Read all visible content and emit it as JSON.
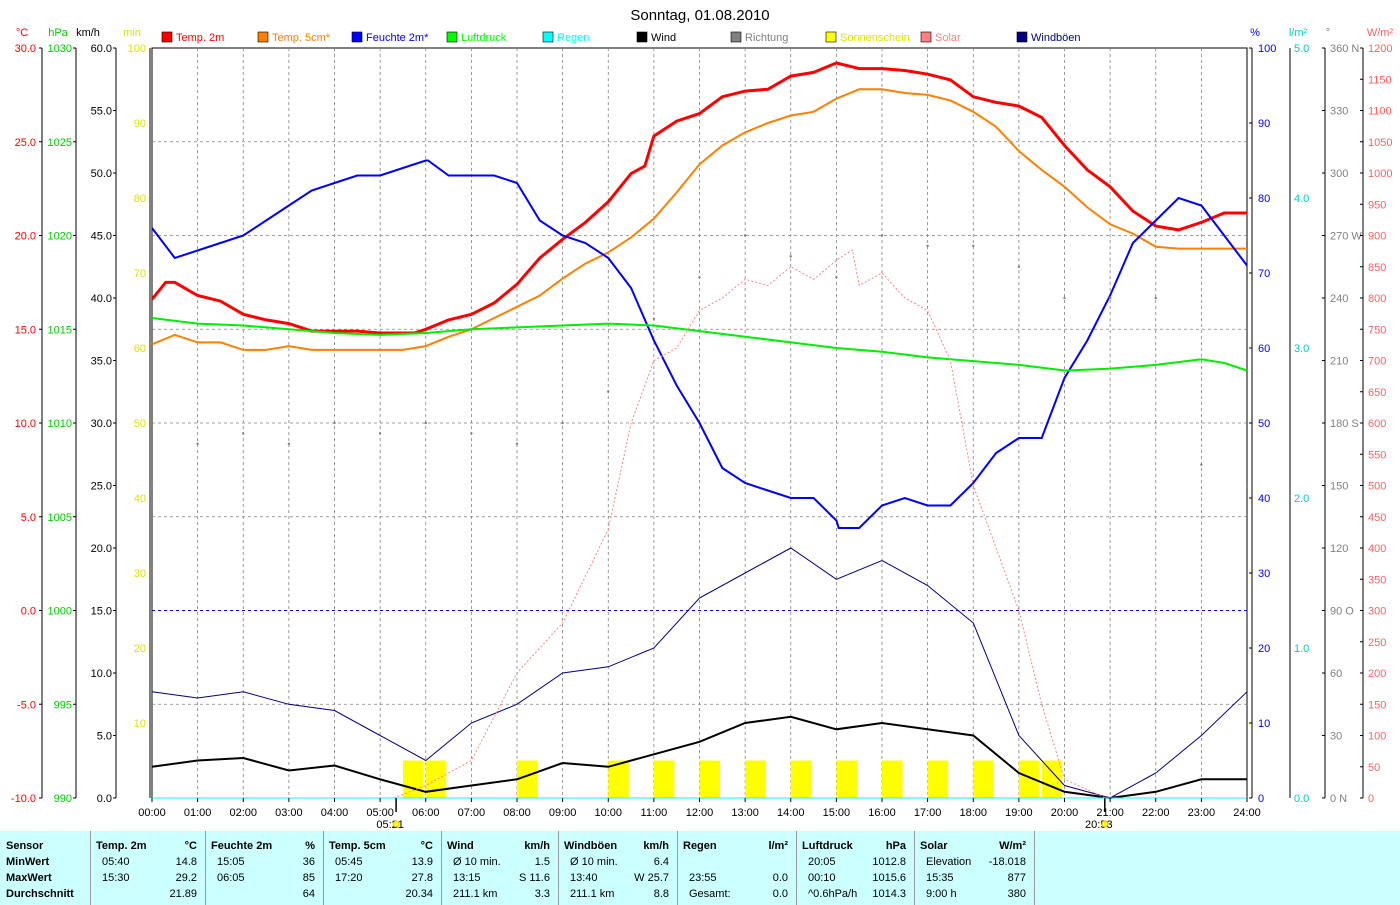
{
  "title": "Sonntag, 01.08.2010",
  "legend": [
    {
      "label": "Temp. 2m",
      "color": "#ff0000"
    },
    {
      "label": "Temp. 5cm*",
      "color": "#ff8000"
    },
    {
      "label": "Feuchte 2m*",
      "color": "#0000ff"
    },
    {
      "label": "Luftdruck",
      "color": "#00ff00"
    },
    {
      "label": "Regen",
      "color": "#00ffff"
    },
    {
      "label": "Wind",
      "color": "#000000"
    },
    {
      "label": "Richtung",
      "color": "#808080"
    },
    {
      "label": "Sonnenschein",
      "color": "#ffff00"
    },
    {
      "label": "Solar",
      "color": "#ff8080"
    },
    {
      "label": "Windböen",
      "color": "#000080"
    }
  ],
  "axis_units": {
    "temp": "°C",
    "pressure": "hPa",
    "wind": "km/h",
    "sun": "min",
    "humidity": "%",
    "rain": "l/m²",
    "direction": "°",
    "solar": "W/m²"
  },
  "axes": {
    "temp": {
      "ticks": [
        "30.0",
        "25.0",
        "20.0",
        "15.0",
        "10.0",
        "5.0",
        "0.0",
        "-5.0",
        "-10.0"
      ],
      "color": "#ff0000"
    },
    "pressure": {
      "ticks": [
        "1030",
        "1025",
        "1020",
        "1015",
        "1010",
        "1005",
        "1000",
        "995",
        "990"
      ],
      "color": "#00cc00"
    },
    "wind": {
      "ticks": [
        "60.0",
        "55.0",
        "50.0",
        "45.0",
        "40.0",
        "35.0",
        "30.0",
        "25.0",
        "20.0",
        "15.0",
        "10.0",
        "5.0",
        "0.0"
      ],
      "color": "#000000"
    },
    "sun": {
      "ticks": [
        "100",
        "90",
        "80",
        "70",
        "60",
        "50",
        "40",
        "30",
        "20",
        "10"
      ],
      "color": "#ffff00"
    },
    "humidity": {
      "ticks": [
        "100",
        "90",
        "80",
        "70",
        "60",
        "50",
        "40",
        "30",
        "20",
        "10",
        "0"
      ],
      "color": "#0000ff"
    },
    "rain": {
      "ticks": [
        "5.0",
        "4.0",
        "3.0",
        "2.0",
        "1.0",
        "0.0"
      ],
      "color": "#00cccc"
    },
    "direction": {
      "ticks": [
        "360 N",
        "330",
        "300",
        "270 W",
        "240",
        "210",
        "180 S",
        "150",
        "120",
        "90 O",
        "60",
        "30",
        "0 N"
      ],
      "color": "#808080"
    },
    "solar": {
      "ticks": [
        "1200",
        "1150",
        "1100",
        "1050",
        "1000",
        "950",
        "900",
        "850",
        "800",
        "750",
        "700",
        "650",
        "600",
        "550",
        "500",
        "450",
        "400",
        "350",
        "300",
        "250",
        "200",
        "150",
        "100",
        "50",
        "0"
      ],
      "color": "#ff6060"
    },
    "time": {
      "ticks": [
        "00:00",
        "01:00",
        "02:00",
        "03:00",
        "04:00",
        "05:00",
        "06:00",
        "07:00",
        "08:00",
        "09:00",
        "10:00",
        "11:00",
        "12:00",
        "13:00",
        "14:00",
        "15:00",
        "16:00",
        "17:00",
        "18:00",
        "19:00",
        "20:00",
        "21:00",
        "22:00",
        "23:00",
        "24:00"
      ]
    }
  },
  "sunrise": "05:21",
  "sunset": "20:53",
  "chart_data": {
    "type": "line",
    "title": "Sonntag, 01.08.2010",
    "x_unit": "h",
    "series": [
      {
        "name": "Temp. 2m",
        "unit": "°C",
        "x": [
          0,
          0.3,
          0.5,
          1,
          1.5,
          2,
          2.5,
          3,
          3.5,
          4,
          4.5,
          5,
          5.5,
          5.75,
          6,
          6.5,
          7,
          7.5,
          8,
          8.5,
          9,
          9.5,
          10,
          10.5,
          10.8,
          11,
          11.5,
          12,
          12.5,
          13,
          13.5,
          14,
          14.5,
          15,
          15.5,
          16,
          16.5,
          17,
          17.5,
          18,
          18.5,
          19,
          19.5,
          20,
          20.5,
          21,
          21.5,
          22,
          22.5,
          23,
          23.5,
          24
        ],
        "values": [
          16.6,
          17.5,
          17.5,
          16.8,
          16.5,
          15.8,
          15.5,
          15.3,
          14.9,
          14.9,
          14.9,
          14.8,
          14.8,
          14.8,
          15.0,
          15.5,
          15.8,
          16.4,
          17.4,
          18.8,
          19.8,
          20.7,
          21.8,
          23.3,
          23.7,
          25.3,
          26.1,
          26.5,
          27.4,
          27.7,
          27.8,
          28.5,
          28.7,
          29.2,
          28.9,
          28.9,
          28.8,
          28.6,
          28.3,
          27.4,
          27.1,
          26.9,
          26.3,
          24.8,
          23.5,
          22.6,
          21.3,
          20.5,
          20.3,
          20.7,
          21.2,
          21.2
        ]
      },
      {
        "name": "Temp. 5cm*",
        "unit": "°C",
        "x": [
          0,
          0.5,
          1,
          1.5,
          2,
          2.5,
          3,
          3.5,
          4,
          4.5,
          5,
          5.5,
          6,
          6.5,
          7,
          7.5,
          8,
          8.5,
          9,
          9.5,
          10,
          10.5,
          11,
          11.5,
          12,
          12.5,
          13,
          13.5,
          14,
          14.5,
          15,
          15.5,
          16,
          16.5,
          17,
          17.5,
          18,
          18.5,
          19,
          19.5,
          20,
          20.5,
          21,
          21.5,
          22,
          22.5,
          23,
          23.5,
          24
        ],
        "values": [
          14.2,
          14.7,
          14.3,
          14.3,
          13.9,
          13.9,
          14.1,
          13.9,
          13.9,
          13.9,
          13.9,
          13.9,
          14.1,
          14.6,
          15.0,
          15.6,
          16.2,
          16.8,
          17.7,
          18.5,
          19.1,
          19.9,
          20.9,
          22.3,
          23.8,
          24.8,
          25.5,
          26.0,
          26.4,
          26.6,
          27.3,
          27.8,
          27.8,
          27.6,
          27.5,
          27.2,
          26.6,
          25.8,
          24.5,
          23.5,
          22.6,
          21.5,
          20.6,
          20.1,
          19.4,
          19.3,
          19.3,
          19.3,
          19.3
        ]
      },
      {
        "name": "Feuchte 2m*",
        "unit": "%",
        "x": [
          0,
          0.5,
          1,
          1.5,
          2,
          2.5,
          3,
          3.5,
          4,
          4.5,
          5,
          5.5,
          6,
          6.05,
          6.5,
          7,
          7.5,
          8,
          8.5,
          9,
          9.5,
          10,
          10.5,
          11,
          11.5,
          12,
          12.5,
          13,
          13.5,
          14,
          14.5,
          15,
          15.05,
          15.5,
          16,
          16.5,
          17,
          17.5,
          18,
          18.5,
          19,
          19.5,
          20,
          20.5,
          21,
          21.5,
          22,
          22.5,
          23,
          23.5,
          24
        ],
        "values": [
          76,
          72,
          73,
          74,
          75,
          77,
          79,
          81,
          82,
          83,
          83,
          84,
          85,
          85,
          83,
          83,
          83,
          82,
          77,
          75,
          74,
          72,
          68,
          61,
          55,
          50,
          44,
          42,
          41,
          40,
          40,
          37,
          36,
          36,
          39,
          40,
          39,
          39,
          42,
          46,
          48,
          48,
          56,
          61,
          67,
          74,
          77,
          80,
          79,
          75,
          71
        ]
      },
      {
        "name": "Luftdruck",
        "unit": "hPa",
        "x": [
          0,
          1,
          2,
          3,
          4,
          5,
          6,
          7,
          8,
          9,
          10,
          11,
          12,
          13,
          14,
          15,
          16,
          17,
          18,
          19,
          20,
          20.08,
          21,
          22,
          23,
          23.5,
          24
        ],
        "values": [
          1015.6,
          1015.3,
          1015.2,
          1015.0,
          1014.8,
          1014.7,
          1014.8,
          1015.0,
          1015.1,
          1015.2,
          1015.3,
          1015.2,
          1014.9,
          1014.6,
          1014.3,
          1014.0,
          1013.8,
          1013.5,
          1013.3,
          1013.1,
          1012.8,
          1012.8,
          1012.9,
          1013.1,
          1013.4,
          1013.2,
          1012.8
        ]
      },
      {
        "name": "Wind",
        "unit": "km/h",
        "x": [
          0,
          1,
          2,
          3,
          4,
          5,
          6,
          7,
          8,
          9,
          10,
          11,
          12,
          13,
          14,
          15,
          16,
          17,
          18,
          19,
          20,
          21,
          22,
          23,
          24
        ],
        "values": [
          2.5,
          3.0,
          3.2,
          2.2,
          2.6,
          1.5,
          0.5,
          1.0,
          1.5,
          2.8,
          2.5,
          3.5,
          4.5,
          6.0,
          6.5,
          5.5,
          6.0,
          5.5,
          5.0,
          2.0,
          0.5,
          0.0,
          0.5,
          1.5,
          1.5
        ]
      },
      {
        "name": "Windböen",
        "unit": "km/h",
        "x": [
          0,
          1,
          2,
          3,
          4,
          5,
          6,
          7,
          8,
          9,
          10,
          11,
          12,
          13,
          14,
          15,
          16,
          17,
          18,
          19,
          20,
          21,
          22,
          23,
          24
        ],
        "values": [
          8.5,
          8.0,
          8.5,
          7.5,
          7.0,
          5.0,
          3.0,
          6.0,
          7.5,
          10.0,
          10.5,
          12.0,
          16.0,
          18.0,
          20.0,
          17.5,
          19.0,
          17.0,
          14.0,
          5.0,
          1.0,
          0.0,
          2.0,
          5.0,
          8.5
        ]
      },
      {
        "name": "Richtung",
        "unit": "°",
        "x": [
          0,
          1,
          2,
          3,
          4,
          5,
          6,
          7,
          8,
          9,
          10,
          11,
          12,
          13,
          14,
          15,
          16,
          17,
          18,
          19,
          20,
          21,
          22,
          23,
          24
        ],
        "values": [
          150,
          170,
          175,
          170,
          180,
          175,
          180,
          175,
          170,
          180,
          195,
          230,
          250,
          270,
          260,
          250,
          270,
          265,
          265,
          255,
          240,
          240,
          240,
          160,
          150
        ]
      },
      {
        "name": "Solar",
        "unit": "W/m²",
        "x": [
          5.3,
          6,
          7,
          8,
          9,
          10,
          10.5,
          11,
          11.5,
          12,
          12.5,
          13,
          13.5,
          14,
          14.5,
          15,
          15.35,
          15.5,
          16,
          16.5,
          17,
          17.5,
          18,
          18.5,
          19,
          19.5,
          20,
          20.9
        ],
        "values": [
          0,
          20,
          60,
          200,
          280,
          430,
          600,
          700,
          720,
          780,
          800,
          830,
          820,
          850,
          830,
          860,
          877,
          820,
          840,
          800,
          780,
          700,
          500,
          400,
          300,
          150,
          30,
          0
        ]
      },
      {
        "name": "Sonnenschein",
        "unit": "min",
        "x": [
          5.5,
          6,
          8,
          10,
          11,
          12,
          13,
          14,
          15,
          16,
          17,
          18,
          19,
          19.5
        ],
        "values": [
          5,
          5,
          5,
          5,
          5,
          5,
          5,
          5,
          5,
          5,
          5,
          5,
          5,
          5
        ]
      },
      {
        "name": "Regen",
        "unit": "l/m²",
        "x": [
          0,
          24
        ],
        "values": [
          0.0,
          0.0
        ]
      }
    ]
  },
  "stats": {
    "headers": [
      {
        "name": "Sensor",
        "unit": ""
      },
      {
        "name": "Temp. 2m",
        "unit": "°C"
      },
      {
        "name": "Feuchte 2m",
        "unit": "%"
      },
      {
        "name": "Temp. 5cm",
        "unit": "°C"
      },
      {
        "name": "Wind",
        "unit": "km/h"
      },
      {
        "name": "Windböen",
        "unit": "km/h"
      },
      {
        "name": "Regen",
        "unit": "l/m²"
      },
      {
        "name": "Luftdruck",
        "unit": "hPa"
      },
      {
        "name": "Solar",
        "unit": "W/m²"
      }
    ],
    "row_labels": [
      "MinWert",
      "MaxWert",
      "Durchschnitt"
    ],
    "columns": [
      [
        [
          "05:40",
          "14.8"
        ],
        [
          "15:30",
          "29.2"
        ],
        [
          "",
          "21.89"
        ]
      ],
      [
        [
          "15:05",
          "36"
        ],
        [
          "06:05",
          "85"
        ],
        [
          "",
          "64"
        ]
      ],
      [
        [
          "05:45",
          "13.9"
        ],
        [
          "17:20",
          "27.8"
        ],
        [
          "",
          "20.34"
        ]
      ],
      [
        [
          "Ø 10 min.",
          "1.5"
        ],
        [
          "13:15",
          "S 11.6"
        ],
        [
          "211.1 km",
          "3.3"
        ]
      ],
      [
        [
          "Ø 10 min.",
          "6.4"
        ],
        [
          "13:40",
          "W 25.7"
        ],
        [
          "211.1 km",
          "8.8"
        ]
      ],
      [
        [
          "",
          ""
        ],
        [
          "23:55",
          "0.0"
        ],
        [
          "Gesamt:",
          "0.0"
        ]
      ],
      [
        [
          "20:05",
          "1012.8"
        ],
        [
          "00:10",
          "1015.6"
        ],
        [
          "^0.6hPa/h",
          "1014.3"
        ]
      ],
      [
        [
          "Elevation",
          "-18.018"
        ],
        [
          "15:35",
          "877"
        ],
        [
          "9:00 h",
          "380"
        ]
      ]
    ]
  }
}
